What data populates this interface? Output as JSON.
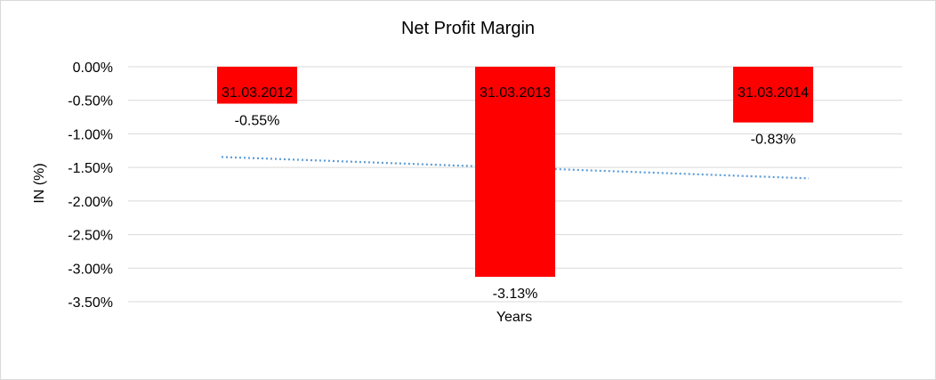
{
  "chart_data": {
    "type": "bar",
    "title": "Net Profit Margin",
    "xlabel": "Years",
    "ylabel": "IN (%)",
    "categories": [
      "31.03.2012",
      "31.03.2013",
      "31.03.2014"
    ],
    "values": [
      -0.55,
      -3.13,
      -0.83
    ],
    "data_labels": [
      "-0.55%",
      "-3.13%",
      "-0.83%"
    ],
    "ylim": [
      -3.5,
      0
    ],
    "yticks": [
      0,
      -0.5,
      -1.0,
      -1.5,
      -2.0,
      -2.5,
      -3.0,
      -3.5
    ],
    "ytick_labels": [
      "0.00%",
      "-0.50%",
      "-1.00%",
      "-1.50%",
      "-2.00%",
      "-2.50%",
      "-3.00%",
      "-3.50%"
    ],
    "grid": true,
    "trendline": {
      "type": "linear",
      "style": "dotted",
      "color": "#5b9bd5"
    },
    "bar_color": "#ff0000"
  }
}
